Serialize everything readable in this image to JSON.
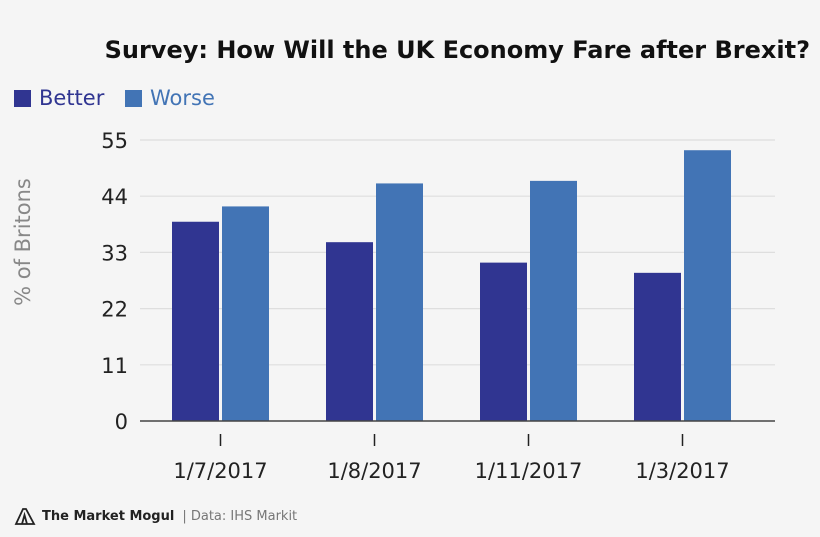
{
  "chart_data": {
    "type": "bar",
    "title": "Survey: How Will the UK Economy Fare after Brexit?",
    "ylabel": "% of Britons",
    "xlabel": "",
    "categories": [
      "1/7/2017",
      "1/8/2017",
      "1/11/2017",
      "1/3/2017"
    ],
    "series": [
      {
        "name": "Better",
        "color": "#303591",
        "values": [
          39,
          35,
          31,
          29
        ]
      },
      {
        "name": "Worse",
        "color": "#4274b5",
        "values": [
          42,
          46.5,
          47,
          53
        ]
      }
    ],
    "ylim": [
      0,
      55
    ],
    "yticks": [
      0,
      11,
      22,
      33,
      44,
      55
    ],
    "grid": true,
    "legend": "top-left"
  },
  "footer": {
    "brand": "The Market Mogul",
    "source": "| Data: IHS Markit"
  }
}
